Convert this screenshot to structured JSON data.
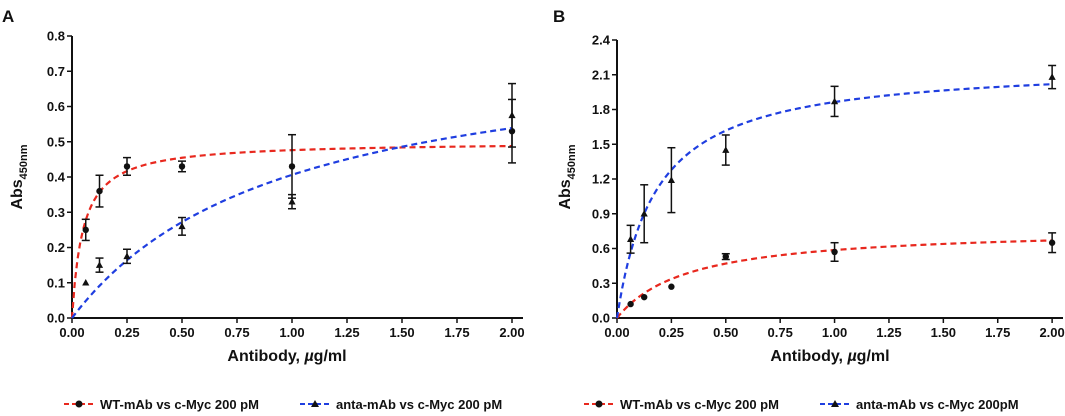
{
  "chart_data": [
    {
      "type": "scatter",
      "panel_label": "A",
      "xlabel_main": "Antibody, ",
      "xlabel_mu": "µ",
      "xlabel_unit": "g/ml",
      "ylabel_main": "Abs",
      "ylabel_sub": "450nm",
      "xlim": [
        0,
        2.05
      ],
      "ylim": [
        0,
        0.8
      ],
      "x_ticks": [
        "0.00",
        "0.25",
        "0.50",
        "0.75",
        "1.00",
        "1.25",
        "1.50",
        "1.75",
        "2.00"
      ],
      "y_ticks": [
        "0.0",
        "0.1",
        "0.2",
        "0.3",
        "0.4",
        "0.5",
        "0.6",
        "0.7",
        "0.8"
      ],
      "legend_position": "bottom",
      "series": [
        {
          "name": "WT-mAb vs c-Myc 200 pM",
          "color": "#e8281e",
          "marker": "circle",
          "x": [
            0.0625,
            0.125,
            0.25,
            0.5,
            1.0,
            2.0
          ],
          "y": [
            0.25,
            0.36,
            0.43,
            0.43,
            0.43,
            0.53
          ],
          "err": [
            0.03,
            0.045,
            0.025,
            0.015,
            0.09,
            0.09
          ],
          "fit": {
            "bmax": 0.5,
            "kd": 0.05
          }
        },
        {
          "name": "anta-mAb vs c-Myc 200 pM",
          "color": "#1f3ee0",
          "marker": "triangle",
          "x": [
            0.0625,
            0.125,
            0.25,
            0.5,
            1.0,
            2.0
          ],
          "y": [
            0.1,
            0.15,
            0.175,
            0.26,
            0.33,
            0.575
          ],
          "err": [
            0.0,
            0.02,
            0.02,
            0.025,
            0.02,
            0.09
          ],
          "fit": {
            "bmax": 0.8,
            "kd": 0.97
          }
        }
      ]
    },
    {
      "type": "scatter",
      "panel_label": "B",
      "xlabel_main": "Antibody, ",
      "xlabel_mu": "µ",
      "xlabel_unit": "g/ml",
      "ylabel_main": "Abs",
      "ylabel_sub": "450nm",
      "xlim": [
        0,
        2.05
      ],
      "ylim": [
        0,
        2.4
      ],
      "x_ticks": [
        "0.00",
        "0.25",
        "0.50",
        "0.75",
        "1.00",
        "1.25",
        "1.50",
        "1.75",
        "2.00"
      ],
      "y_ticks": [
        "0.0",
        "0.3",
        "0.6",
        "0.9",
        "1.2",
        "1.5",
        "1.8",
        "2.1",
        "2.4"
      ],
      "legend_position": "bottom",
      "series": [
        {
          "name": "WT-mAb vs c-Myc 200 pM",
          "color": "#e8281e",
          "marker": "circle",
          "x": [
            0.0625,
            0.125,
            0.25,
            0.5,
            1.0,
            2.0
          ],
          "y": [
            0.12,
            0.18,
            0.27,
            0.53,
            0.57,
            0.65
          ],
          "err": [
            0.0,
            0.0,
            0.0,
            0.025,
            0.08,
            0.085
          ],
          "fit": {
            "bmax": 0.78,
            "kd": 0.33
          }
        },
        {
          "name": "anta-mAb vs c-Myc 200pM",
          "color": "#1f3ee0",
          "marker": "triangle",
          "x": [
            0.0625,
            0.125,
            0.25,
            0.5,
            1.0,
            2.0
          ],
          "y": [
            0.68,
            0.9,
            1.19,
            1.45,
            1.87,
            2.08
          ],
          "err": [
            0.12,
            0.25,
            0.28,
            0.13,
            0.13,
            0.1
          ],
          "fit": {
            "bmax": 2.2,
            "kd": 0.18
          }
        }
      ]
    }
  ]
}
